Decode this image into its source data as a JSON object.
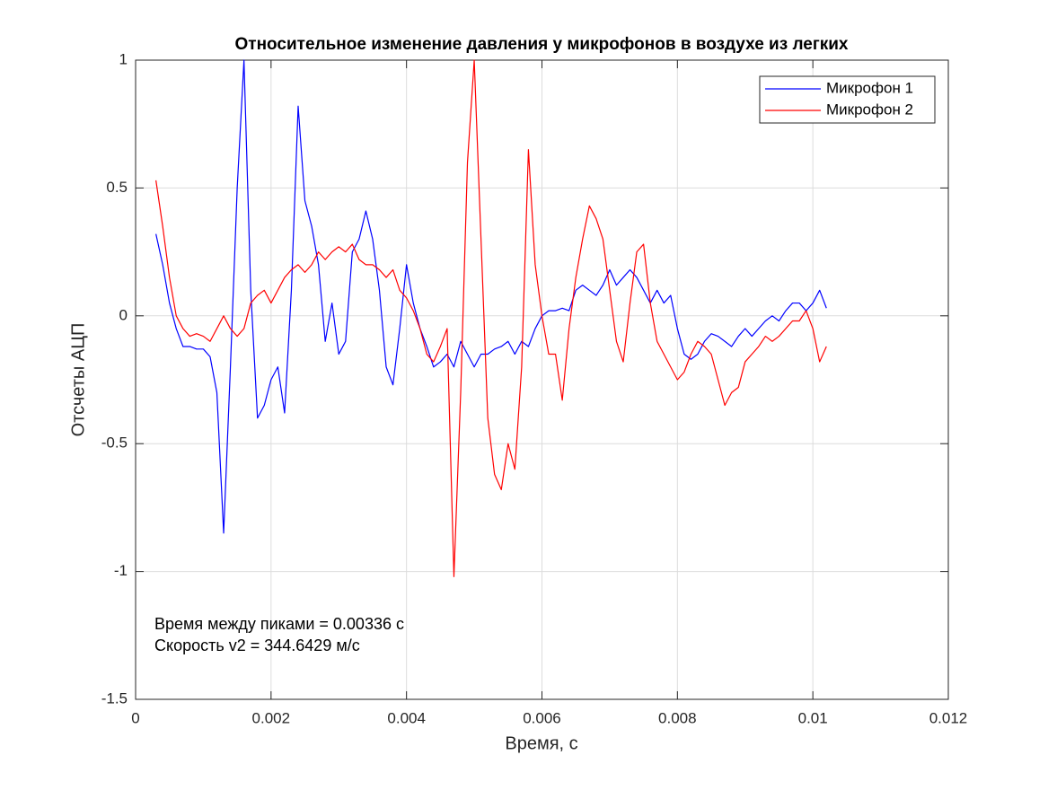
{
  "chart_data": {
    "type": "line",
    "title": "Относительное изменение давления у микрофонов в воздухе из легких",
    "xlabel": "Время, с",
    "ylabel": "Отсчеты АЦП",
    "annotations": [
      "Время между пиками = 0.00336 с",
      "Скорость v2 = 344.6429 м/с"
    ],
    "x": [
      0.0003,
      0.0004,
      0.0005,
      0.0006,
      0.0007,
      0.0008,
      0.0009,
      0.001,
      0.0011,
      0.0012,
      0.0013,
      0.0014,
      0.0015,
      0.0016,
      0.0017,
      0.0018,
      0.0019,
      0.002,
      0.0021,
      0.0022,
      0.0023,
      0.0024,
      0.0025,
      0.0026,
      0.0027,
      0.0028,
      0.0029,
      0.003,
      0.0031,
      0.0032,
      0.0033,
      0.0034,
      0.0035,
      0.0036,
      0.0037,
      0.0038,
      0.0039,
      0.004,
      0.0041,
      0.0042,
      0.0043,
      0.0044,
      0.0045,
      0.0046,
      0.0047,
      0.0048,
      0.0049,
      0.005,
      0.0051,
      0.0052,
      0.0053,
      0.0054,
      0.0055,
      0.0056,
      0.0057,
      0.0058,
      0.0059,
      0.006,
      0.0061,
      0.0062,
      0.0063,
      0.0064,
      0.0065,
      0.0066,
      0.0067,
      0.0068,
      0.0069,
      0.007,
      0.0071,
      0.0072,
      0.0073,
      0.0074,
      0.0075,
      0.0076,
      0.0077,
      0.0078,
      0.0079,
      0.008,
      0.0081,
      0.0082,
      0.0083,
      0.0084,
      0.0085,
      0.0086,
      0.0087,
      0.0088,
      0.0089,
      0.009,
      0.0091,
      0.0092,
      0.0093,
      0.0094,
      0.0095,
      0.0096,
      0.0097,
      0.0098,
      0.0099,
      0.01,
      0.0101,
      0.0102
    ],
    "series": [
      {
        "name": "Микрофон 1",
        "color": "#0000ff",
        "values": [
          0.32,
          0.2,
          0.05,
          -0.05,
          -0.12,
          -0.12,
          -0.13,
          -0.13,
          -0.16,
          -0.3,
          -0.85,
          -0.2,
          0.5,
          1.0,
          0.1,
          -0.4,
          -0.35,
          -0.25,
          -0.2,
          -0.38,
          0.1,
          0.82,
          0.45,
          0.35,
          0.2,
          -0.1,
          0.05,
          -0.15,
          -0.1,
          0.25,
          0.3,
          0.41,
          0.3,
          0.1,
          -0.2,
          -0.27,
          -0.05,
          0.2,
          0.05,
          -0.05,
          -0.12,
          -0.2,
          -0.18,
          -0.15,
          -0.2,
          -0.1,
          -0.15,
          -0.2,
          -0.15,
          -0.15,
          -0.13,
          -0.12,
          -0.1,
          -0.15,
          -0.1,
          -0.12,
          -0.05,
          0.0,
          0.02,
          0.02,
          0.03,
          0.02,
          0.1,
          0.12,
          0.1,
          0.08,
          0.12,
          0.18,
          0.12,
          0.15,
          0.18,
          0.15,
          0.1,
          0.05,
          0.1,
          0.05,
          0.08,
          -0.05,
          -0.15,
          -0.17,
          -0.15,
          -0.1,
          -0.07,
          -0.08,
          -0.1,
          -0.12,
          -0.08,
          -0.05,
          -0.08,
          -0.05,
          -0.02,
          0.0,
          -0.02,
          0.02,
          0.05,
          0.05,
          0.02,
          0.05,
          0.1,
          0.03
        ]
      },
      {
        "name": "Микрофон 2",
        "color": "#ff0000",
        "values": [
          0.53,
          0.35,
          0.15,
          0.0,
          -0.05,
          -0.08,
          -0.07,
          -0.08,
          -0.1,
          -0.05,
          0.0,
          -0.05,
          -0.08,
          -0.05,
          0.05,
          0.08,
          0.1,
          0.05,
          0.1,
          0.15,
          0.18,
          0.2,
          0.17,
          0.2,
          0.25,
          0.22,
          0.25,
          0.27,
          0.25,
          0.28,
          0.22,
          0.2,
          0.2,
          0.18,
          0.15,
          0.18,
          0.1,
          0.07,
          0.02,
          -0.05,
          -0.15,
          -0.18,
          -0.12,
          -0.05,
          -1.02,
          -0.3,
          0.6,
          1.0,
          0.3,
          -0.4,
          -0.62,
          -0.68,
          -0.5,
          -0.6,
          -0.2,
          0.65,
          0.2,
          0.0,
          -0.15,
          -0.15,
          -0.33,
          -0.05,
          0.15,
          0.3,
          0.43,
          0.38,
          0.3,
          0.1,
          -0.1,
          -0.18,
          0.05,
          0.25,
          0.28,
          0.05,
          -0.1,
          -0.15,
          -0.2,
          -0.25,
          -0.22,
          -0.15,
          -0.1,
          -0.12,
          -0.15,
          -0.25,
          -0.35,
          -0.3,
          -0.28,
          -0.18,
          -0.15,
          -0.12,
          -0.08,
          -0.1,
          -0.08,
          -0.05,
          -0.02,
          -0.02,
          0.02,
          -0.05,
          -0.18,
          -0.12
        ]
      }
    ],
    "xlim": [
      0,
      0.012
    ],
    "xticks": [
      0,
      0.002,
      0.004,
      0.006,
      0.008,
      0.01,
      0.012
    ],
    "ylim": [
      -1.5,
      1
    ],
    "yticks": [
      -1.5,
      -1,
      -0.5,
      0,
      0.5,
      1
    ],
    "grid": true,
    "legend": "northeast"
  }
}
